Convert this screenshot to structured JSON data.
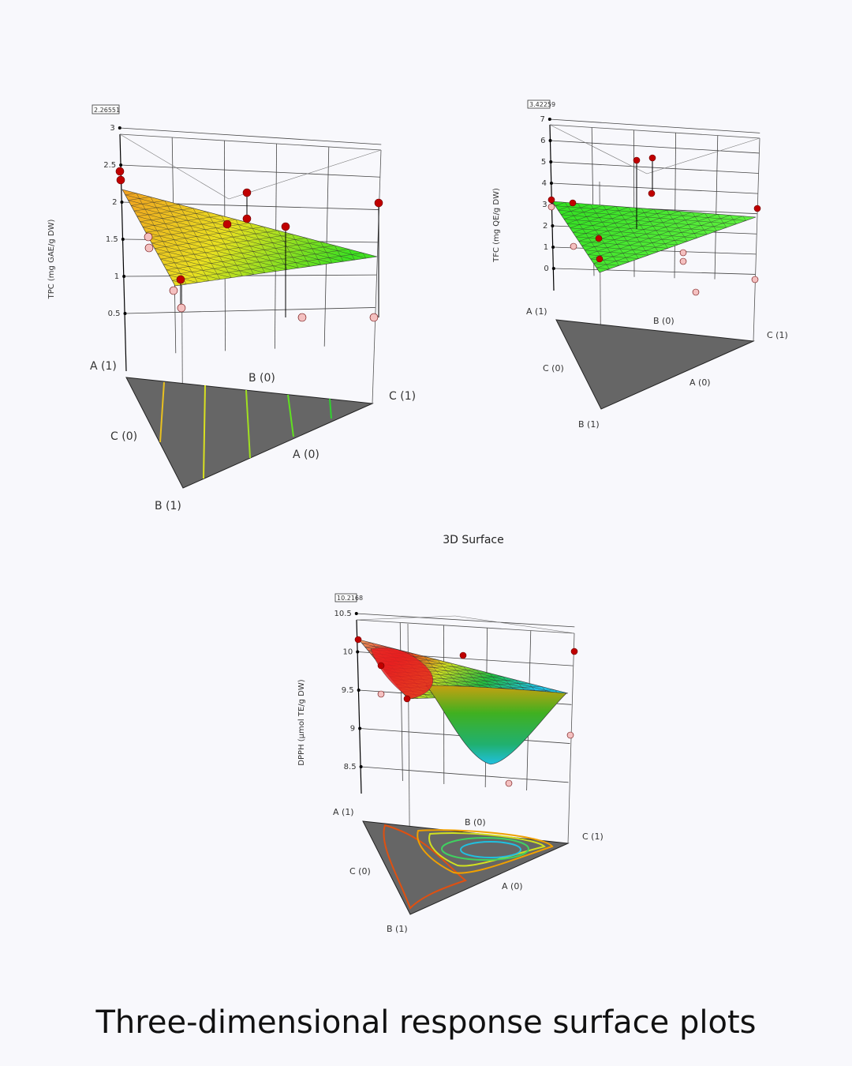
{
  "center_title": "3D Surface",
  "caption": "Three-dimensional response surface plots",
  "chart_data": [
    {
      "type": "surface",
      "ylabel": "TPC (mg GAE/g DW)",
      "current_value": "2.26551",
      "zticks": [
        "3",
        "2.5",
        "2",
        "1.5",
        "1",
        "0.5"
      ],
      "vertex_labels": {
        "a1": "A (1)",
        "b0": "B (0)",
        "c1": "C (1)",
        "c0": "C (0)",
        "a0": "A (0)",
        "b1": "B (1)"
      },
      "colors": [
        "#f0a020",
        "#e8e020",
        "#40e020"
      ]
    },
    {
      "type": "surface",
      "ylabel": "TFC (mg QE/g DW)",
      "current_value": "3.42259",
      "zticks": [
        "7",
        "6",
        "5",
        "4",
        "3",
        "2",
        "1",
        "0"
      ],
      "vertex_labels": {
        "a1": "A (1)",
        "b0": "B (0)",
        "c1": "C (1)",
        "c0": "C (0)",
        "a0": "A (0)",
        "b1": "B (1)"
      },
      "colors": [
        "#30e020",
        "#60f040"
      ]
    },
    {
      "type": "surface",
      "ylabel": "DPPH (µmol TE/g DW)",
      "current_value": "10.2168",
      "zticks": [
        "10.5",
        "10",
        "9.5",
        "9",
        "8.5"
      ],
      "vertex_labels": {
        "a1": "A (1)",
        "b0": "B (0)",
        "c1": "C (1)",
        "c0": "C (0)",
        "a0": "A (0)",
        "b1": "B (1)"
      },
      "colors": [
        "#f0a060",
        "#e82020",
        "#d0e020",
        "#20c040",
        "#20c0e0"
      ]
    }
  ]
}
